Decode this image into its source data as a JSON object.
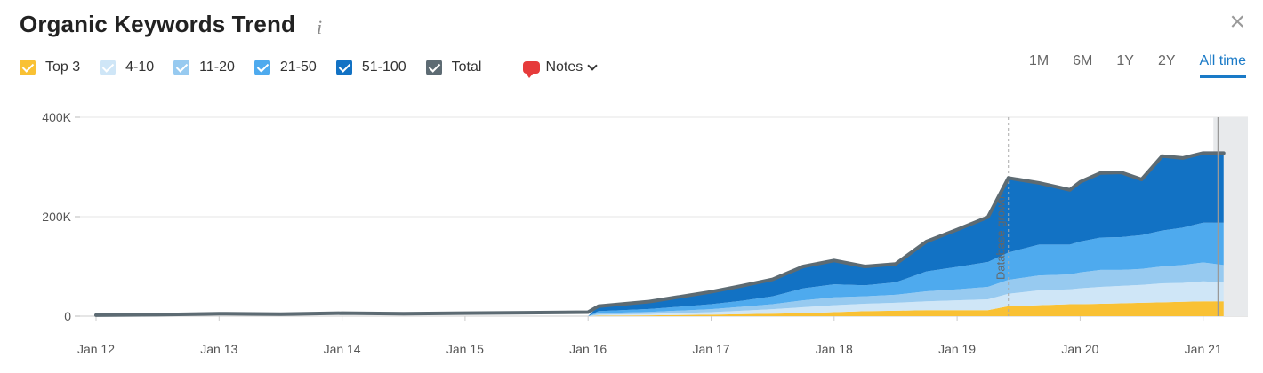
{
  "header": {
    "title": "Organic Keywords Trend",
    "info_icon": "i",
    "close_icon": "×"
  },
  "legend": [
    {
      "label": "Top 3",
      "color": "#f9c134"
    },
    {
      "label": "4-10",
      "color": "#cfe6f7"
    },
    {
      "label": "11-20",
      "color": "#97caf0"
    },
    {
      "label": "21-50",
      "color": "#4eaaee"
    },
    {
      "label": "51-100",
      "color": "#1272c4"
    },
    {
      "label": "Total",
      "color": "#5d6b73"
    }
  ],
  "notes_label": "Notes",
  "periods": [
    {
      "label": "1M",
      "active": false
    },
    {
      "label": "6M",
      "active": false
    },
    {
      "label": "1Y",
      "active": false
    },
    {
      "label": "2Y",
      "active": false
    },
    {
      "label": "All time",
      "active": true
    }
  ],
  "chart_data": {
    "type": "area",
    "stacked": true,
    "title": "Organic Keywords Trend",
    "x_ticks": [
      "Jan 12",
      "Jan 13",
      "Jan 14",
      "Jan 15",
      "Jan 16",
      "Jan 17",
      "Jan 18",
      "Jan 19",
      "Jan 20",
      "Jan 21"
    ],
    "y_ticks": [
      {
        "value": 0,
        "label": "0"
      },
      {
        "value": 200000,
        "label": "200K"
      },
      {
        "value": 400000,
        "label": "400K"
      }
    ],
    "ylim": [
      0,
      400000
    ],
    "grid": true,
    "annotation": {
      "label": "Database growth",
      "date": "2019-06"
    },
    "x": [
      "2012-01",
      "2012-07",
      "2013-01",
      "2013-07",
      "2014-01",
      "2014-07",
      "2015-01",
      "2015-07",
      "2016-01",
      "2016-02",
      "2016-07",
      "2017-01",
      "2017-04",
      "2017-07",
      "2017-10",
      "2018-01",
      "2018-04",
      "2018-07",
      "2018-10",
      "2019-01",
      "2019-04",
      "2019-06",
      "2019-09",
      "2019-12",
      "2020-01",
      "2020-03",
      "2020-05",
      "2020-07",
      "2020-09",
      "2020-11",
      "2021-01",
      "2021-03"
    ],
    "series": [
      {
        "name": "Top 3",
        "color": "#f9c134",
        "values": [
          0,
          0,
          0,
          0,
          0,
          0,
          0,
          0,
          0,
          1000,
          1500,
          3000,
          4000,
          5000,
          6000,
          8000,
          10000,
          11000,
          12000,
          12000,
          12000,
          20000,
          22000,
          24000,
          24000,
          25000,
          26000,
          27000,
          28000,
          29000,
          30000,
          30000
        ]
      },
      {
        "name": "4-10",
        "color": "#cfe6f7",
        "values": [
          0,
          0,
          0,
          0,
          0,
          0,
          0,
          0,
          0,
          2000,
          3000,
          5000,
          7000,
          9000,
          12000,
          14000,
          15000,
          16000,
          18000,
          20000,
          22000,
          25000,
          30000,
          30000,
          32000,
          34000,
          35000,
          36000,
          38000,
          38000,
          40000,
          38000
        ]
      },
      {
        "name": "11-20",
        "color": "#97caf0",
        "values": [
          0,
          0,
          0,
          0,
          0,
          0,
          0,
          0,
          0,
          3000,
          4000,
          6000,
          8000,
          10000,
          14000,
          16000,
          15000,
          16000,
          20000,
          22000,
          25000,
          28000,
          30000,
          30000,
          32000,
          34000,
          32000,
          32000,
          34000,
          36000,
          38000,
          35000
        ]
      },
      {
        "name": "21-50",
        "color": "#4eaaee",
        "values": [
          0,
          0,
          0,
          0,
          0,
          0,
          0,
          0,
          0,
          4000,
          6000,
          10000,
          12000,
          16000,
          24000,
          26000,
          22000,
          25000,
          40000,
          45000,
          50000,
          55000,
          62000,
          60000,
          62000,
          65000,
          66000,
          68000,
          72000,
          75000,
          80000,
          85000
        ]
      },
      {
        "name": "51-100",
        "color": "#1272c4",
        "values": [
          0,
          0,
          0,
          0,
          0,
          0,
          0,
          0,
          0,
          10000,
          15000,
          25000,
          30000,
          34000,
          44000,
          48000,
          38000,
          37000,
          60000,
          75000,
          90000,
          150000,
          124000,
          110000,
          120000,
          130000,
          130000,
          112000,
          150000,
          140000,
          140000,
          140000
        ]
      },
      {
        "name": "Total",
        "color": "#5d6b73",
        "values": [
          2000,
          3000,
          5000,
          4000,
          6000,
          5000,
          6000,
          7000,
          8000,
          20000,
          29500,
          49000,
          61000,
          74000,
          100000,
          112000,
          100000,
          105000,
          150000,
          174000,
          199000,
          278000,
          268000,
          254000,
          270000,
          288000,
          289000,
          275000,
          322000,
          318000,
          328000,
          328000
        ]
      }
    ]
  }
}
